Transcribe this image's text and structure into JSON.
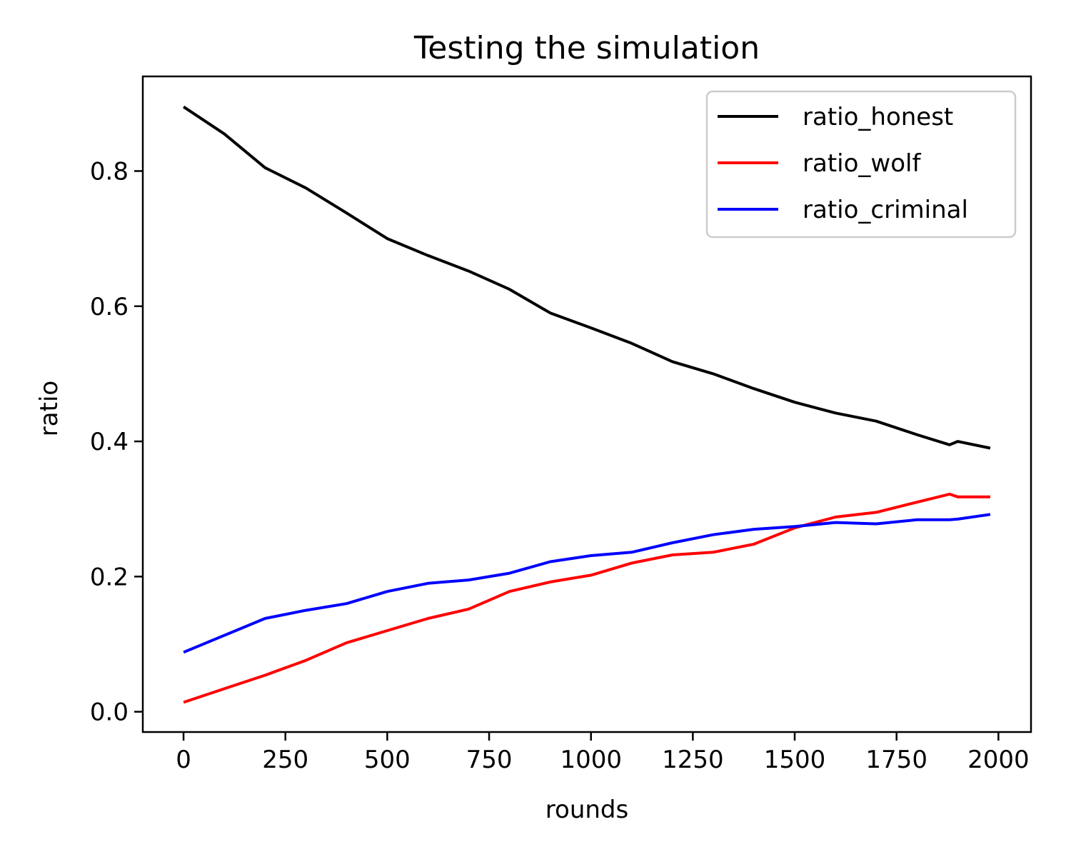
{
  "chart_data": {
    "type": "line",
    "title": "Testing the simulation",
    "xlabel": "rounds",
    "ylabel": "ratio",
    "xlim": [
      -100,
      2080
    ],
    "ylim": [
      -0.03,
      0.94
    ],
    "xticks": [
      0,
      250,
      500,
      750,
      1000,
      1250,
      1500,
      1750,
      2000
    ],
    "xtick_labels": [
      "0",
      "250",
      "500",
      "750",
      "1000",
      "1250",
      "1500",
      "1750",
      "2000"
    ],
    "yticks": [
      0.0,
      0.2,
      0.4,
      0.6,
      0.8
    ],
    "ytick_labels": [
      "0.0",
      "0.2",
      "0.4",
      "0.6",
      "0.8"
    ],
    "grid": false,
    "legend_position": "top-right",
    "x": [
      0,
      100,
      200,
      300,
      400,
      500,
      600,
      700,
      800,
      900,
      1000,
      1100,
      1200,
      1300,
      1400,
      1500,
      1600,
      1700,
      1800,
      1880,
      1900,
      1980
    ],
    "series": [
      {
        "name": "ratio_honest",
        "color": "#000000",
        "values": [
          0.895,
          0.855,
          0.805,
          0.775,
          0.738,
          0.7,
          0.675,
          0.652,
          0.625,
          0.59,
          0.568,
          0.545,
          0.518,
          0.5,
          0.478,
          0.458,
          0.442,
          0.43,
          0.41,
          0.395,
          0.4,
          0.39
        ]
      },
      {
        "name": "ratio_wolf",
        "color": "#ff0000",
        "values": [
          0.014,
          0.034,
          0.054,
          0.076,
          0.102,
          0.12,
          0.138,
          0.152,
          0.178,
          0.192,
          0.202,
          0.22,
          0.232,
          0.236,
          0.248,
          0.272,
          0.288,
          0.295,
          0.31,
          0.322,
          0.318,
          0.318
        ]
      },
      {
        "name": "ratio_criminal",
        "color": "#0000ff",
        "values": [
          0.088,
          0.113,
          0.138,
          0.15,
          0.16,
          0.178,
          0.19,
          0.195,
          0.205,
          0.222,
          0.231,
          0.236,
          0.25,
          0.262,
          0.27,
          0.274,
          0.28,
          0.278,
          0.284,
          0.284,
          0.285,
          0.292
        ]
      }
    ]
  }
}
